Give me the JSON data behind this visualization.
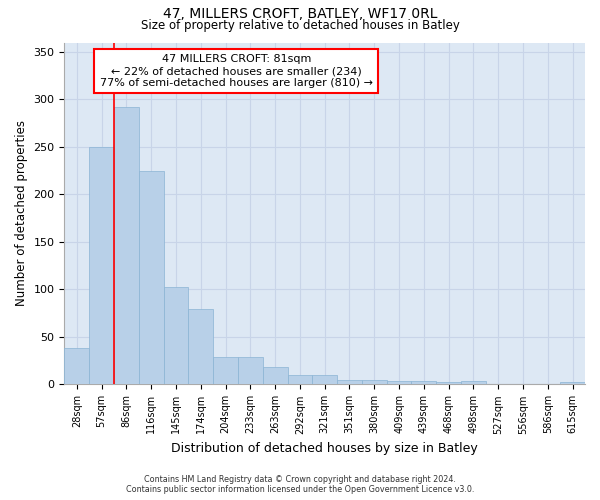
{
  "title": "47, MILLERS CROFT, BATLEY, WF17 0RL",
  "subtitle": "Size of property relative to detached houses in Batley",
  "xlabel": "Distribution of detached houses by size in Batley",
  "ylabel": "Number of detached properties",
  "categories": [
    "28sqm",
    "57sqm",
    "86sqm",
    "116sqm",
    "145sqm",
    "174sqm",
    "204sqm",
    "233sqm",
    "263sqm",
    "292sqm",
    "321sqm",
    "351sqm",
    "380sqm",
    "409sqm",
    "439sqm",
    "468sqm",
    "498sqm",
    "527sqm",
    "556sqm",
    "586sqm",
    "615sqm"
  ],
  "values": [
    38,
    250,
    292,
    225,
    103,
    79,
    29,
    29,
    18,
    10,
    10,
    5,
    5,
    4,
    4,
    3,
    4,
    0,
    0,
    0,
    3
  ],
  "bar_color": "#b8d0e8",
  "bar_edge_color": "#8ab4d4",
  "grid_color": "#c8d4e8",
  "background_color": "#dde8f4",
  "property_label": "47 MILLERS CROFT: 81sqm",
  "pct_smaller": 22,
  "count_smaller": 234,
  "pct_larger": 77,
  "count_larger": 810,
  "red_line_x": 1.5,
  "ylim": [
    0,
    360
  ],
  "yticks": [
    0,
    50,
    100,
    150,
    200,
    250,
    300,
    350
  ],
  "footer_line1": "Contains HM Land Registry data © Crown copyright and database right 2024.",
  "footer_line2": "Contains public sector information licensed under the Open Government Licence v3.0."
}
